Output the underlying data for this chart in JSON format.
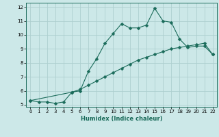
{
  "xlabel": "Humidex (Indice chaleur)",
  "bg_color": "#cce8e8",
  "grid_color": "#aecfcf",
  "line_color": "#1a6b5a",
  "spine_color": "#1a6b5a",
  "xlim": [
    -0.5,
    22.5
  ],
  "ylim": [
    4.85,
    12.3
  ],
  "xticks": [
    0,
    1,
    2,
    3,
    4,
    5,
    6,
    7,
    8,
    9,
    10,
    11,
    12,
    13,
    14,
    15,
    16,
    17,
    18,
    19,
    20,
    21,
    22
  ],
  "yticks": [
    5,
    6,
    7,
    8,
    9,
    10,
    11,
    12
  ],
  "curve1_x": [
    0,
    1,
    2,
    3,
    4,
    5,
    6,
    7,
    8,
    9,
    10,
    11,
    12,
    13,
    14,
    15,
    16,
    17,
    18,
    19,
    20,
    21,
    22
  ],
  "curve1_y": [
    5.3,
    5.2,
    5.2,
    5.1,
    5.2,
    5.9,
    6.0,
    7.4,
    8.3,
    9.4,
    10.1,
    10.8,
    10.5,
    10.5,
    10.7,
    11.9,
    11.0,
    10.9,
    9.7,
    9.1,
    9.2,
    9.2,
    8.6
  ],
  "curve2_x": [
    0,
    5,
    6,
    7,
    8,
    9,
    10,
    11,
    12,
    13,
    14,
    15,
    16,
    17,
    18,
    19,
    20,
    21,
    22
  ],
  "curve2_y": [
    5.3,
    5.9,
    6.1,
    6.4,
    6.7,
    7.0,
    7.3,
    7.6,
    7.9,
    8.2,
    8.4,
    8.6,
    8.8,
    9.0,
    9.1,
    9.2,
    9.3,
    9.4,
    8.6
  ],
  "tick_fontsize": 5.0,
  "xlabel_fontsize": 6.0,
  "marker_size": 2.5
}
